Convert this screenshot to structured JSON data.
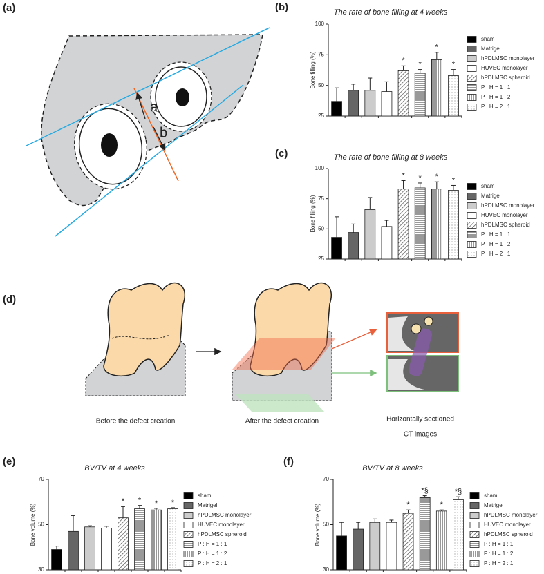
{
  "panel_labels": [
    "(a)",
    "(b)",
    "(c)",
    "(d)",
    "(e)",
    "(f)"
  ],
  "diagram_a": {
    "labels": [
      "a",
      "b"
    ]
  },
  "diagram_d": {
    "captions": [
      "Before the defect creation",
      "After the defect creation",
      "Horizontally sectioned",
      "CT images"
    ]
  },
  "chart_data": [
    {
      "type": "bar",
      "title": "The rate of bone filling at 4 weeks",
      "y_label": "Bone filling (%)",
      "categories": [
        "sham",
        "Matrigel",
        "hPDLMSC monolayer",
        "HUVEC monolayer",
        "hPDLMSC spheroid",
        "P : H = 1 : 1",
        "P : H = 1 : 2",
        "P : H = 2 : 1"
      ],
      "values": [
        37,
        46,
        46,
        45,
        62,
        60,
        71,
        58
      ],
      "errors": [
        11,
        5,
        10,
        8,
        4,
        3,
        6,
        5
      ],
      "annotations": [
        null,
        null,
        null,
        null,
        "*",
        "*",
        "*",
        "*"
      ],
      "fills": [
        "black",
        "#666666",
        "#cccccc",
        "white",
        "hatch-diag",
        "hatch-h",
        "hatch-v",
        "dots"
      ],
      "ylim": [
        25,
        100
      ],
      "yticks": [
        25,
        50,
        75,
        100
      ]
    },
    {
      "type": "bar",
      "title": "The rate of bone filling at 8 weeks",
      "y_label": "Bone filling (%)",
      "categories": [
        "sham",
        "Matrigel",
        "hPDLMSC monolayer",
        "HUVEC monolayer",
        "hPDLMSC spheroid",
        "P : H = 1 : 1",
        "P : H = 1 : 2",
        "P : H = 2 : 1"
      ],
      "values": [
        43,
        47,
        66,
        52,
        83,
        84,
        83,
        82
      ],
      "errors": [
        17,
        7,
        10,
        5,
        7,
        4,
        6,
        4
      ],
      "annotations": [
        null,
        null,
        null,
        null,
        "*",
        "*",
        "*",
        "*"
      ],
      "fills": [
        "black",
        "#666666",
        "#cccccc",
        "white",
        "hatch-diag",
        "hatch-h",
        "hatch-v",
        "dots"
      ],
      "ylim": [
        25,
        100
      ],
      "yticks": [
        25,
        50,
        75,
        100
      ]
    },
    {
      "type": "bar",
      "title": "BV/TV at 4 weeks",
      "y_label": "Bone volume (%)",
      "categories": [
        "sham",
        "Matrigel",
        "hPDLMSC monolayer",
        "HUVEC monolayer",
        "hPDLMSC spheroid",
        "P : H = 1 : 1",
        "P : H = 1 : 2",
        "P : H = 2 : 1"
      ],
      "values": [
        39,
        47,
        49,
        48.5,
        53,
        57,
        56.5,
        57
      ],
      "errors": [
        1.5,
        7,
        0.5,
        0.8,
        5,
        1.5,
        0.7,
        0.5
      ],
      "annotations": [
        null,
        null,
        null,
        null,
        "*",
        "*",
        "*",
        "*"
      ],
      "fills": [
        "black",
        "#666666",
        "#cccccc",
        "white",
        "hatch-diag",
        "hatch-h",
        "hatch-v",
        "dots"
      ],
      "ylim": [
        30,
        70
      ],
      "yticks": [
        30,
        50,
        70
      ]
    },
    {
      "type": "bar",
      "title": "BV/TV at 8 weeks",
      "y_label": "Bone volume (%)",
      "categories": [
        "sham",
        "Matrigel",
        "hPDLMSC monolayer",
        "HUVEC monolayer",
        "hPDLMSC spheroid",
        "P : H = 1 : 1",
        "P : H = 1 : 2",
        "P : H = 2 : 1"
      ],
      "values": [
        45,
        48,
        51,
        51,
        55,
        62,
        56,
        61
      ],
      "errors": [
        6,
        3,
        1.5,
        1,
        1.5,
        0.8,
        0.5,
        1.3
      ],
      "annotations": [
        null,
        null,
        null,
        null,
        "*",
        "*§",
        "*",
        "*§"
      ],
      "fills": [
        "black",
        "#666666",
        "#cccccc",
        "white",
        "hatch-diag",
        "hatch-h",
        "hatch-v",
        "dots"
      ],
      "ylim": [
        30,
        70
      ],
      "yticks": [
        30,
        50,
        70
      ]
    }
  ]
}
